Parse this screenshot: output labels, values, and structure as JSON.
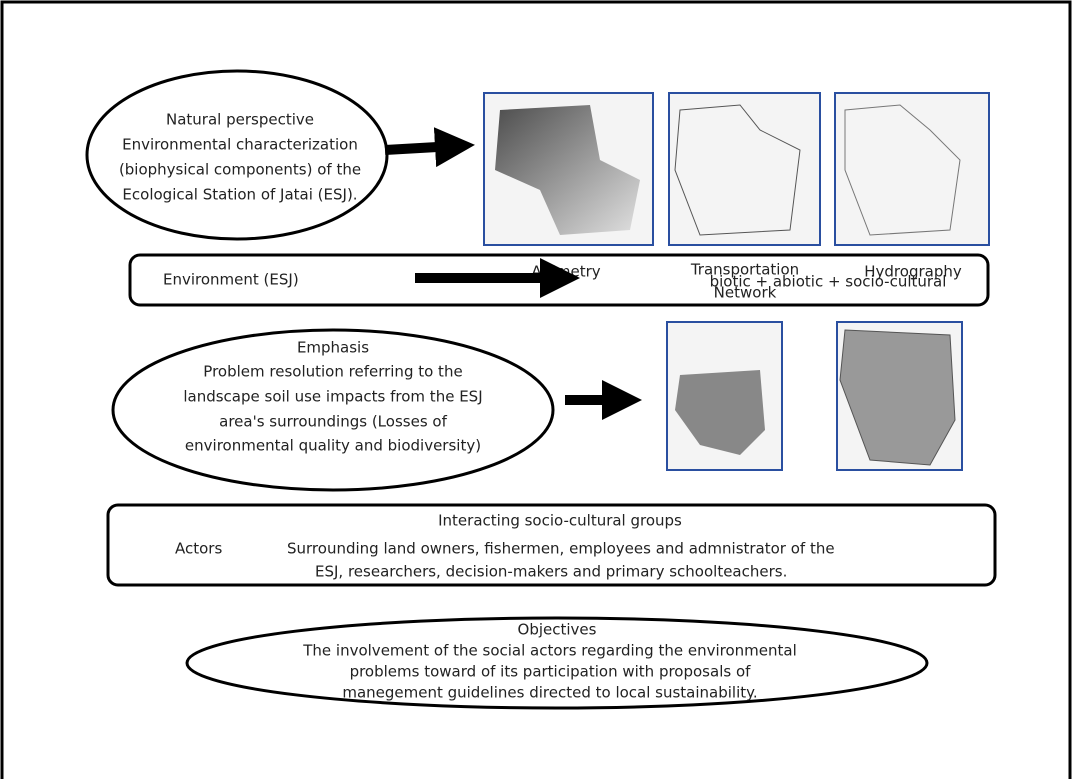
{
  "natural": {
    "lines": [
      "Natural perspective",
      "Environmental characterization",
      "(biophysical components) of the",
      "Ecological Station of Jatai (ESJ)."
    ]
  },
  "maps": [
    "Altimetry",
    "Transportation",
    "Network",
    "Hydrography"
  ],
  "environment": {
    "label": "Environment (ESJ)",
    "components": "biotic + abiotic + socio-cultural"
  },
  "emphasis": {
    "lines": [
      "Emphasis",
      "Problem resolution referring to the",
      "landscape soil use impacts from the ESJ",
      "area's surroundings (Losses of",
      "environmental quality and biodiversity)"
    ]
  },
  "actors": {
    "title": "Interacting socio-cultural groups",
    "label": "Actors",
    "lines": [
      "Surrounding land owners, fishermen, employees and admnistrator of the",
      "ESJ, researchers, decision-makers and primary schoolteachers."
    ]
  },
  "objectives": {
    "lines": [
      "Objectives",
      "The involvement of the social actors regarding the environmental",
      "problems toward of its participation with proposals of",
      "manegement guidelines directed to local sustainability."
    ]
  }
}
